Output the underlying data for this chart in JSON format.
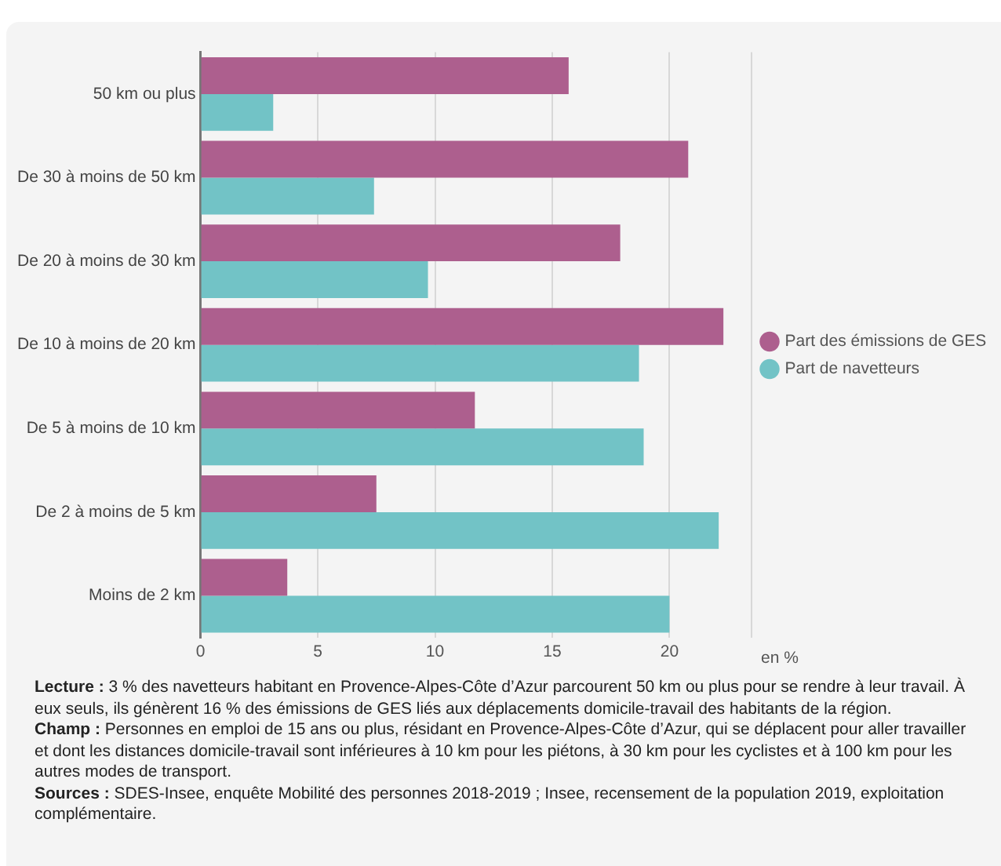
{
  "chart_data": {
    "type": "bar",
    "orientation": "horizontal",
    "xlabel": "en %",
    "categories": [
      "50 km ou plus",
      "De 30 à moins de 50 km",
      "De 20 à moins de 30 km",
      "De 10 à moins de 20 km",
      "De 5 à moins de 10 km",
      "De 2 à moins de 5 km",
      "Moins de 2 km"
    ],
    "series": [
      {
        "name": "Part des émissions de GES",
        "color": "#ad5f8e",
        "values": [
          15.7,
          20.8,
          17.9,
          22.3,
          11.7,
          7.5,
          3.7
        ]
      },
      {
        "name": "Part de navetteurs",
        "color": "#72c3c6",
        "values": [
          3.1,
          7.4,
          9.7,
          18.7,
          18.9,
          22.1,
          20.0
        ]
      }
    ],
    "xlim": [
      0,
      23.5
    ],
    "xticks": [
      0,
      5,
      10,
      15,
      20,
      {
        "value": 23.5,
        "label": null
      }
    ],
    "grid": "x",
    "legend": "right",
    "marker": "circle",
    "annotations": [
      "Lecture : 3 % des navetteurs habitant en Provence-Alpes-Côte d’Azur parcourent 50 km ou plus pour se rendre à leur travail. À eux seuls, ils génèrent 16 % des émissions de GES liés aux déplacements domicile-travail des habitants de la région.",
      "Champ : Personnes en emploi de 15 ans ou plus, résidant en Provence-Alpes-Côte d’Azur, qui se déplacent pour aller travailler et dont les distances domicile-travail sont inférieures à 10 km pour les piétons, à 30 km pour les cyclistes et à 100 km pour les autres modes de transport.",
      "Sources : SDES-Insee, enquête Mobilité des personnes 2018-2019 ; Insee, recensement de la population 2019, exploitation complémentaire."
    ]
  }
}
